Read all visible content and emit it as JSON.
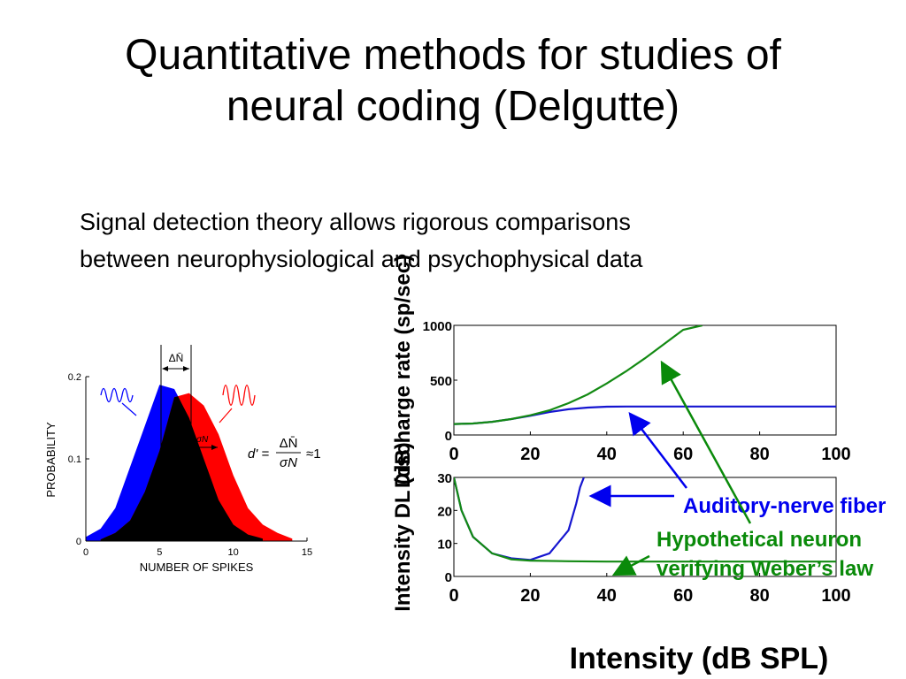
{
  "slide": {
    "title_lines": [
      "Quantitative methods for studies of",
      "neural coding (Delgutte)"
    ],
    "subtitle_lines": [
      "Signal detection theory allows rigorous comparisons",
      "between neurophysiological and psychophysical data"
    ]
  },
  "colors": {
    "noise": "#0000ff",
    "signal": "#ff0000",
    "overlap": "#000000",
    "auditory_nerve": "#1515d0",
    "weber": "#138a13",
    "label_blue": "#0000ee",
    "label_green": "#0a8a0a"
  },
  "icons": [
    "noise-wave-icon",
    "signal-wave-icon"
  ],
  "chart_data": [
    {
      "type": "area",
      "xlabel": "NUMBER OF SPIKES",
      "ylabel": "PROBABILITY",
      "xlim": [
        0,
        15
      ],
      "ylim": [
        0,
        0.2
      ],
      "xticks": [
        "0",
        "5",
        "10",
        "15"
      ],
      "yticks": [
        "0",
        "0.1",
        "0.2"
      ],
      "annotations": {
        "delta_n": "ΔN̄",
        "sigma_n": "σN",
        "dprime_lhs": "d' =",
        "dprime_num": "ΔN̄",
        "dprime_den": "σN",
        "dprime_rhs": "≈1"
      },
      "series": [
        {
          "x": [
            0,
            1,
            2,
            3,
            4,
            5,
            6,
            7,
            8,
            9,
            10,
            11,
            12
          ],
          "values": [
            0.005,
            0.015,
            0.04,
            0.09,
            0.14,
            0.19,
            0.185,
            0.15,
            0.1,
            0.05,
            0.02,
            0.008,
            0.003
          ]
        },
        {
          "x": [
            1,
            2,
            3,
            4,
            5,
            6,
            7,
            8,
            9,
            10,
            11,
            12,
            13,
            14
          ],
          "values": [
            0.002,
            0.01,
            0.025,
            0.06,
            0.11,
            0.175,
            0.18,
            0.165,
            0.13,
            0.08,
            0.04,
            0.02,
            0.01,
            0.003
          ]
        }
      ]
    },
    {
      "type": "line",
      "ylabel": "Discharge rate (sp/sec)",
      "xlim": [
        0,
        100
      ],
      "ylim": [
        0,
        1000
      ],
      "xticks": [
        "0",
        "20",
        "40",
        "60",
        "80",
        "100"
      ],
      "yticks": [
        "0",
        "500",
        "1000"
      ],
      "series": [
        {
          "x": [
            0,
            5,
            10,
            15,
            20,
            25,
            30,
            35,
            40,
            45,
            50,
            60,
            70,
            80,
            90,
            100
          ],
          "values": [
            100,
            105,
            120,
            145,
            175,
            210,
            235,
            250,
            258,
            260,
            260,
            260,
            260,
            260,
            260,
            260
          ]
        },
        {
          "x": [
            0,
            5,
            10,
            15,
            20,
            25,
            30,
            35,
            40,
            45,
            50,
            55,
            60,
            65
          ],
          "values": [
            100,
            105,
            120,
            145,
            180,
            225,
            290,
            370,
            470,
            580,
            700,
            830,
            960,
            1000
          ]
        }
      ]
    },
    {
      "type": "line",
      "xlabel": "Intensity (dB SPL)",
      "ylabel": "Intensity DL (dB)",
      "xlim": [
        0,
        100
      ],
      "ylim": [
        0,
        30
      ],
      "xticks": [
        "0",
        "20",
        "40",
        "60",
        "80",
        "100"
      ],
      "yticks": [
        "0",
        "10",
        "20",
        "30"
      ],
      "series": [
        {
          "name": "Auditory-nerve fiber",
          "x": [
            0,
            2,
            5,
            10,
            15,
            20,
            25,
            30,
            32,
            33,
            34
          ],
          "values": [
            30,
            20,
            12,
            7,
            5.5,
            5,
            7,
            14,
            22,
            27,
            30
          ]
        },
        {
          "name": "Hypothetical neuron verifying Weber’s law",
          "x": [
            0,
            2,
            5,
            10,
            15,
            20,
            30,
            40,
            60,
            80,
            100
          ],
          "values": [
            30,
            20,
            12,
            7,
            5.2,
            4.8,
            4.6,
            4.5,
            4.5,
            4.5,
            4.5
          ]
        }
      ],
      "legend_labels": [
        "Auditory-nerve fiber",
        "Hypothetical neuron",
        "verifying Weber’s law"
      ]
    }
  ]
}
